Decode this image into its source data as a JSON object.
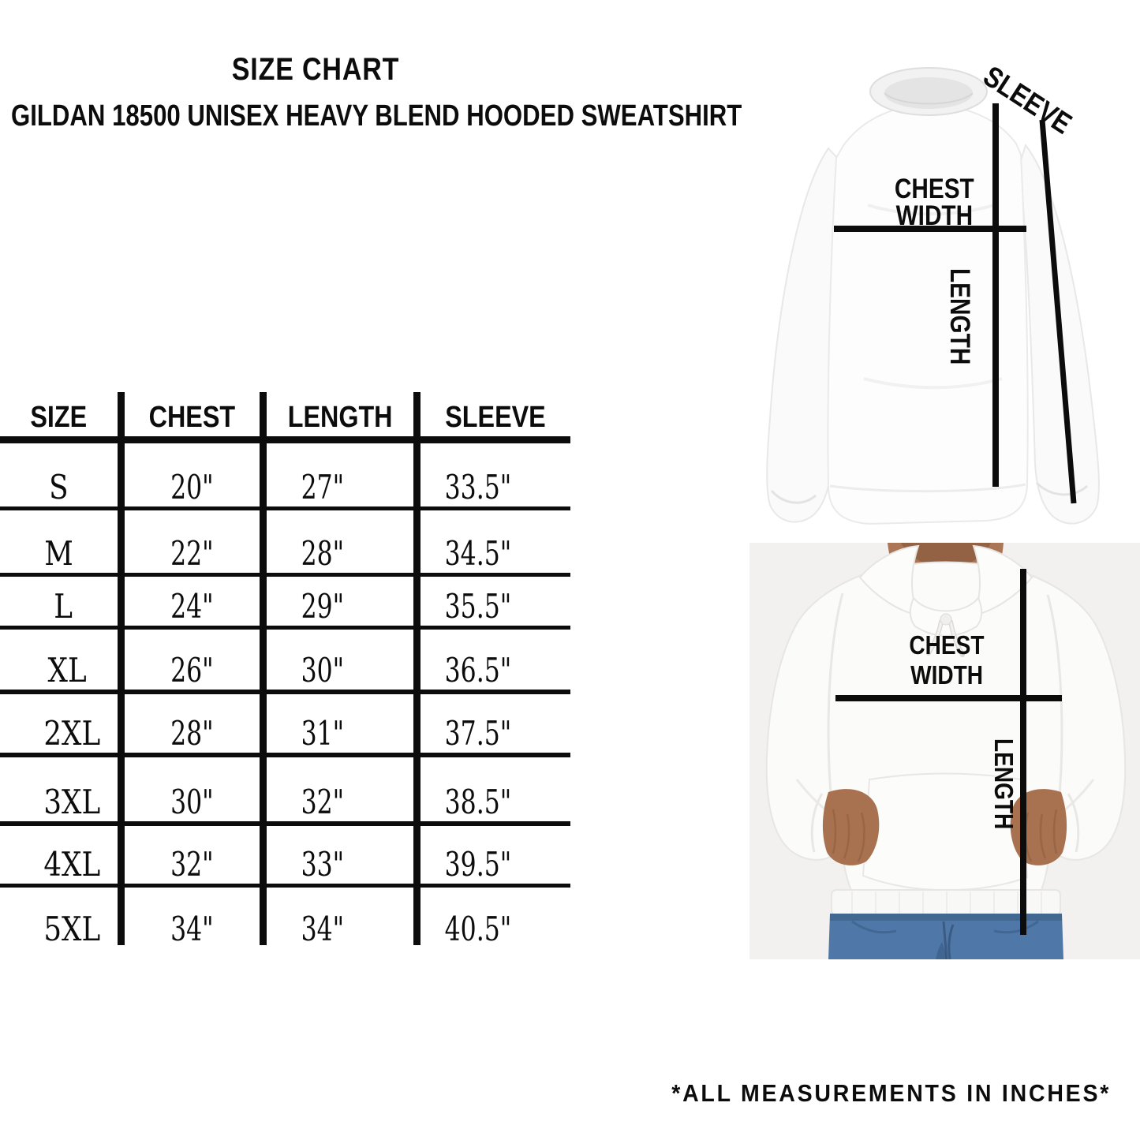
{
  "title": "SIZE CHART",
  "subtitle": "GILDAN  18500  UNISEX HEAVY BLEND HOODED SWEATSHIRT",
  "table": {
    "headers": [
      "SIZE",
      "CHEST",
      "LENGTH",
      "SLEEVE"
    ],
    "rows": [
      {
        "size": "S",
        "chest": "20\"",
        "length": "27\"",
        "sleeve": "33.5\""
      },
      {
        "size": "M",
        "chest": "22\"",
        "length": "28\"",
        "sleeve": "34.5\""
      },
      {
        "size": "L",
        "chest": "24\"",
        "length": "29\"",
        "sleeve": "35.5\""
      },
      {
        "size": "XL",
        "chest": "26\"",
        "length": "30\"",
        "sleeve": "36.5\""
      },
      {
        "size": "2XL",
        "chest": "28\"",
        "length": "31\"",
        "sleeve": "37.5\""
      },
      {
        "size": "3XL",
        "chest": "30\"",
        "length": "32\"",
        "sleeve": "38.5\""
      },
      {
        "size": "4XL",
        "chest": "32\"",
        "length": "33\"",
        "sleeve": "39.5\""
      },
      {
        "size": "5XL",
        "chest": "34\"",
        "length": "34\"",
        "sleeve": "40.5\""
      }
    ]
  },
  "sweatshirt_figure": {
    "sleeve_label": "SLEEVE",
    "chest_label_line1": "CHEST",
    "chest_label_line2": "WIDTH",
    "length_label": "LENGTH"
  },
  "hoodie_figure": {
    "chest_label_line1": "CHEST",
    "chest_label_line2": "WIDTH",
    "length_label": "LENGTH"
  },
  "footnote": "*ALL MEASUREMENTS IN INCHES*",
  "colors": {
    "ink": "#0c0c0c",
    "photo_background": "#f2f1ef",
    "garment_white": "#fbfbfa",
    "denim": "#4f78a8",
    "skin": "#aa7655"
  }
}
